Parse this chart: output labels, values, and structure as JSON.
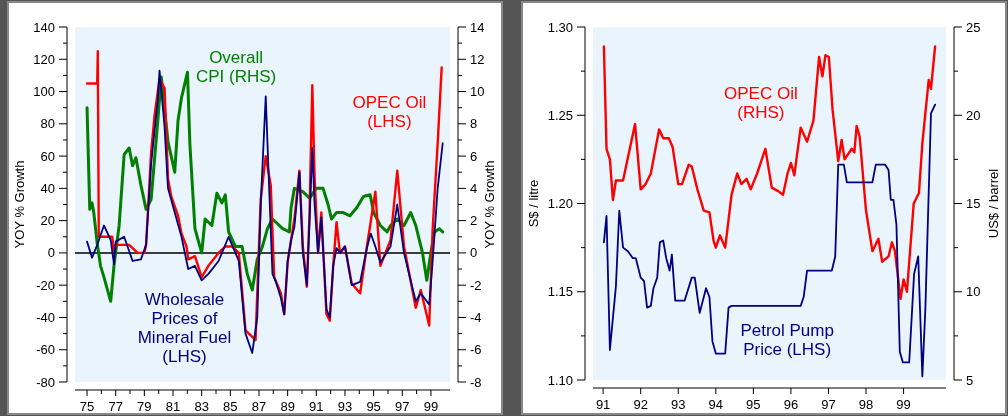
{
  "chart_data": [
    {
      "type": "line",
      "ylabel": "YOY % Growth",
      "y2label": "YOY % Growth",
      "xlim": [
        1974.16,
        2000.33
      ],
      "ylim": [
        -80,
        140
      ],
      "y2lim": [
        -8,
        14
      ],
      "xticks": [
        {
          "value": 1975,
          "label": "75"
        },
        {
          "value": 1976,
          "label": null
        },
        {
          "value": 1977,
          "label": "77"
        },
        {
          "value": 1978,
          "label": null
        },
        {
          "value": 1979,
          "label": "79"
        },
        {
          "value": 1980,
          "label": null
        },
        {
          "value": 1981,
          "label": "81"
        },
        {
          "value": 1982,
          "label": null
        },
        {
          "value": 1983,
          "label": "83"
        },
        {
          "value": 1984,
          "label": null
        },
        {
          "value": 1985,
          "label": "85"
        },
        {
          "value": 1986,
          "label": null
        },
        {
          "value": 1987,
          "label": "87"
        },
        {
          "value": 1988,
          "label": null
        },
        {
          "value": 1989,
          "label": "89"
        },
        {
          "value": 1990,
          "label": null
        },
        {
          "value": 1991,
          "label": "91"
        },
        {
          "value": 1992,
          "label": null
        },
        {
          "value": 1993,
          "label": "93"
        },
        {
          "value": 1994,
          "label": null
        },
        {
          "value": 1995,
          "label": "95"
        },
        {
          "value": 1996,
          "label": null
        },
        {
          "value": 1997,
          "label": "97"
        },
        {
          "value": 1998,
          "label": null
        },
        {
          "value": 1999,
          "label": "99"
        }
      ],
      "yticks": [
        -80,
        {
          "value": -70,
          "label": null
        },
        -60,
        {
          "value": -50,
          "label": null
        },
        -40,
        {
          "value": -30,
          "label": null
        },
        -20,
        {
          "value": -10,
          "label": null
        },
        0,
        {
          "value": 10,
          "label": null
        },
        20,
        {
          "value": 30,
          "label": null
        },
        40,
        {
          "value": 50,
          "label": null
        },
        60,
        {
          "value": 70,
          "label": null
        },
        80,
        {
          "value": 90,
          "label": null
        },
        100,
        {
          "value": 110,
          "label": null
        },
        120,
        {
          "value": 130,
          "label": null
        },
        140
      ],
      "y2ticks": [
        -8,
        {
          "value": -7,
          "label": null
        },
        -6,
        {
          "value": -5,
          "label": null
        },
        -4,
        {
          "value": -3,
          "label": null
        },
        -2,
        {
          "value": -1,
          "label": null
        },
        0,
        {
          "value": 1,
          "label": null
        },
        2,
        {
          "value": 3,
          "label": null
        },
        4,
        {
          "value": 5,
          "label": null
        },
        6,
        {
          "value": 7,
          "label": null
        },
        8,
        {
          "value": 9,
          "label": null
        },
        10,
        {
          "value": 11,
          "label": null
        },
        12,
        {
          "value": 13,
          "label": null
        },
        14
      ],
      "ref_lines": [
        {
          "axis": "y",
          "value": 0,
          "color": "#000000"
        }
      ],
      "grid": false,
      "line_style": "solid",
      "marker": "none",
      "series": [
        {
          "name": "Overall CPI (RHS)",
          "color": "#008000",
          "axis": "y2",
          "x": [
            1975.0,
            1975.19,
            1975.35,
            1975.47,
            1975.71,
            1975.94,
            1976.18,
            1976.65,
            1976.88,
            1977.24,
            1977.59,
            1977.94,
            1978.18,
            1978.41,
            1978.76,
            1979.12,
            1979.47,
            1979.94,
            1980.18,
            1980.65,
            1981.12,
            1981.35,
            1981.59,
            1982.01,
            1982.18,
            1982.53,
            1983.0,
            1983.24,
            1983.71,
            1984.06,
            1984.41,
            1984.65,
            1984.88,
            1985.35,
            1985.82,
            1986.18,
            1986.53,
            1986.88,
            1987.24,
            1987.59,
            1987.94,
            1988.65,
            1989.12,
            1989.24,
            1989.47,
            1990.06,
            1990.53,
            1991.0,
            1991.47,
            1991.82,
            1992.06,
            1992.41,
            1992.88,
            1993.35,
            1993.82,
            1994.29,
            1994.76,
            1995.0,
            1995.47,
            1995.94,
            1996.18,
            1996.65,
            1997.12,
            1997.59,
            1997.94,
            1998.41,
            1998.71,
            1998.99,
            1999.24,
            1999.59,
            1999.82
          ],
          "values": [
            9.0,
            2.7,
            3.1,
            2.5,
            0.6,
            -0.8,
            -1.5,
            -3.0,
            -0.8,
            1.7,
            6.1,
            6.5,
            5.4,
            5.9,
            4.2,
            2.7,
            3.3,
            8.2,
            10.9,
            6.9,
            5.0,
            8.2,
            9.6,
            11.2,
            6.7,
            1.5,
            0.0,
            2.1,
            1.7,
            3.7,
            3.1,
            3.6,
            1.3,
            0.4,
            0.4,
            -1.3,
            -2.3,
            -0.4,
            0.4,
            1.5,
            2.1,
            1.5,
            1.3,
            2.8,
            4.0,
            3.8,
            3.4,
            4.0,
            4.0,
            3.0,
            2.1,
            2.5,
            2.5,
            2.3,
            2.8,
            3.5,
            3.6,
            2.5,
            1.7,
            1.3,
            1.7,
            2.1,
            1.7,
            2.5,
            1.7,
            0.0,
            -1.7,
            0.0,
            1.3,
            1.5,
            1.3
          ]
        },
        {
          "name": "OPEC Oil (LHS)",
          "color": "#ff0000",
          "x": [
            1975.0,
            1975.71,
            1975.75,
            1975.82,
            1976.76,
            1976.88,
            1977.0,
            1977.94,
            1978.53,
            1979.0,
            1979.12,
            1979.47,
            1979.71,
            1980.06,
            1980.41,
            1980.65,
            1980.88,
            1981.35,
            1981.59,
            1981.94,
            1982.06,
            1982.53,
            1983.0,
            1983.47,
            1984.18,
            1984.65,
            1985.12,
            1985.59,
            1986.06,
            1986.76,
            1987.12,
            1987.47,
            1987.82,
            1988.06,
            1988.53,
            1988.76,
            1989.0,
            1989.24,
            1989.47,
            1989.82,
            1990.06,
            1990.34,
            1990.53,
            1990.72,
            1990.88,
            1991.12,
            1991.35,
            1991.71,
            1991.94,
            1992.18,
            1992.41,
            1992.65,
            1993.0,
            1993.47,
            1994.06,
            1994.53,
            1995.12,
            1995.47,
            1996.18,
            1996.65,
            1997.12,
            1997.94,
            1998.29,
            1998.88,
            1999.12,
            1999.47,
            1999.75
          ],
          "values": [
            105,
            105,
            125,
            10,
            10,
            0,
            5,
            5,
            0,
            0,
            5,
            62,
            85,
            108,
            102,
            46,
            35,
            23,
            12,
            4,
            -4,
            -2,
            -15,
            -8,
            0,
            4,
            4,
            0,
            -48,
            -54,
            33,
            60,
            42,
            -15,
            -25,
            -38,
            -6,
            8,
            21,
            51,
            4,
            -21,
            25,
            104,
            47,
            0,
            25,
            -38,
            -42,
            -8,
            19,
            0,
            4,
            -19,
            -25,
            4,
            38,
            -8,
            8,
            51,
            4,
            -34,
            -23,
            -45,
            15,
            68,
            115
          ]
        },
        {
          "name": "Wholesale Prices of Mineral Fuel (LHS)",
          "color": "#000080",
          "x": [
            1975.0,
            1975.35,
            1975.71,
            1976.18,
            1976.65,
            1976.88,
            1977.0,
            1977.59,
            1978.18,
            1978.76,
            1979.12,
            1979.47,
            1979.94,
            1980.06,
            1980.41,
            1980.65,
            1981.12,
            1981.59,
            1982.06,
            1982.53,
            1983.0,
            1983.47,
            1984.18,
            1984.88,
            1985.12,
            1985.59,
            1986.06,
            1986.53,
            1986.88,
            1987.12,
            1987.47,
            1987.71,
            1987.94,
            1988.18,
            1988.53,
            1988.76,
            1989.0,
            1989.24,
            1989.47,
            1989.82,
            1990.06,
            1990.34,
            1990.53,
            1990.72,
            1990.88,
            1991.12,
            1991.35,
            1991.71,
            1991.94,
            1992.18,
            1992.41,
            1992.65,
            1993.0,
            1993.47,
            1994.06,
            1994.53,
            1994.8,
            1995.12,
            1995.47,
            1996.18,
            1996.65,
            1997.12,
            1997.94,
            1998.29,
            1998.88,
            1999.12,
            1999.47,
            1999.82
          ],
          "values": [
            7,
            -3,
            5,
            17,
            8,
            -7,
            7,
            10,
            -5,
            -4,
            5,
            55,
            95,
            113,
            78,
            40,
            25,
            10,
            -10,
            -8,
            -17,
            -13,
            -5,
            10,
            5,
            -5,
            -50,
            -62,
            -40,
            30,
            97,
            40,
            -13,
            -18,
            -28,
            -38,
            -5,
            8,
            16,
            50,
            0,
            -20,
            20,
            65,
            30,
            0,
            22,
            -35,
            -40,
            -8,
            3,
            0,
            4,
            -20,
            -18,
            3,
            12,
            4,
            -6,
            4,
            30,
            0,
            -30,
            -25,
            -32,
            -5,
            40,
            68
          ]
        }
      ]
    },
    {
      "type": "line",
      "ylabel": "S$ / litre",
      "y2label": "US$ / barrel",
      "xlim": [
        1990.73,
        2000.13
      ],
      "ylim": [
        1.1,
        1.3
      ],
      "y2lim": [
        5,
        25
      ],
      "xticks": [
        {
          "value": 1991,
          "label": "91"
        },
        {
          "value": 1992,
          "label": "92"
        },
        {
          "value": 1993,
          "label": "93"
        },
        {
          "value": 1994,
          "label": "94"
        },
        {
          "value": 1995,
          "label": "95"
        },
        {
          "value": 1996,
          "label": "96"
        },
        {
          "value": 1997,
          "label": "97"
        },
        {
          "value": 1998,
          "label": "98"
        },
        {
          "value": 1999,
          "label": "99"
        }
      ],
      "yticks": [
        {
          "value": 1.1,
          "label": "1.10"
        },
        {
          "value": 1.125,
          "label": null
        },
        {
          "value": 1.15,
          "label": "1.15"
        },
        {
          "value": 1.175,
          "label": null
        },
        {
          "value": 1.2,
          "label": "1.20"
        },
        {
          "value": 1.225,
          "label": null
        },
        {
          "value": 1.25,
          "label": "1.25"
        },
        {
          "value": 1.275,
          "label": null
        },
        {
          "value": 1.3,
          "label": "1.30"
        }
      ],
      "y2ticks": [
        5,
        {
          "value": 7.5,
          "label": null
        },
        10,
        {
          "value": 12.5,
          "label": null
        },
        15,
        {
          "value": 17.5,
          "label": null
        },
        20,
        {
          "value": 22.5,
          "label": null
        },
        25
      ],
      "grid": false,
      "line_style": "solid",
      "marker": "none",
      "series": [
        {
          "name": "OPEC Oil (RHS)",
          "color": "#ff0000",
          "axis": "y2",
          "x": [
            1991.02,
            1991.09,
            1991.18,
            1991.26,
            1991.34,
            1991.53,
            1991.66,
            1991.85,
            1992.0,
            1992.13,
            1992.27,
            1992.49,
            1992.6,
            1992.75,
            1992.85,
            1993.0,
            1993.1,
            1993.28,
            1993.36,
            1993.51,
            1993.68,
            1993.83,
            1993.94,
            1994.0,
            1994.11,
            1994.25,
            1994.42,
            1994.57,
            1994.68,
            1994.82,
            1994.93,
            1995.1,
            1995.21,
            1995.32,
            1995.49,
            1995.66,
            1995.79,
            1995.91,
            1996.0,
            1996.09,
            1996.26,
            1996.43,
            1996.6,
            1996.75,
            1996.84,
            1996.92,
            1997.01,
            1997.11,
            1997.26,
            1997.35,
            1997.43,
            1997.62,
            1997.69,
            1997.75,
            1997.83,
            1998.0,
            1998.17,
            1998.33,
            1998.43,
            1998.6,
            1998.69,
            1998.77,
            1998.92,
            1999.0,
            1999.09,
            1999.27,
            1999.41,
            1999.5,
            1999.67,
            1999.73,
            1999.84
          ],
          "values": [
            23.9,
            18.1,
            17.5,
            15.2,
            16.3,
            16.3,
            17.6,
            19.5,
            15.8,
            16.1,
            16.7,
            19.2,
            18.7,
            18.7,
            18.2,
            16.1,
            16.1,
            17.2,
            17.1,
            15.8,
            14.6,
            14.5,
            12.9,
            12.5,
            13.2,
            12.5,
            15.5,
            16.7,
            16.1,
            16.4,
            15.8,
            16.7,
            17.4,
            18.1,
            15.9,
            15.7,
            15.5,
            16.7,
            17.3,
            16.6,
            19.3,
            18.5,
            19.7,
            23.3,
            22.2,
            23.4,
            23.3,
            20.3,
            17.4,
            18.6,
            17.5,
            18.1,
            17.9,
            19.4,
            18.8,
            14.6,
            12.3,
            13.0,
            11.7,
            12.0,
            12.8,
            12.3,
            9.6,
            10.7,
            10.0,
            15.0,
            15.6,
            18.4,
            22.0,
            21.5,
            23.9
          ]
        },
        {
          "name": "Petrol Pump Price (LHS)",
          "color": "#000080",
          "x": [
            1991.02,
            1991.09,
            1991.18,
            1991.34,
            1991.43,
            1991.53,
            1991.66,
            1991.79,
            1991.87,
            1992.0,
            1992.09,
            1992.17,
            1992.27,
            1992.34,
            1992.44,
            1992.51,
            1992.6,
            1992.68,
            1992.77,
            1992.83,
            1992.92,
            1993.02,
            1993.17,
            1993.36,
            1993.44,
            1993.57,
            1993.74,
            1993.83,
            1993.91,
            1994.0,
            1994.25,
            1994.34,
            1994.42,
            1996.26,
            1996.34,
            1996.43,
            1997.09,
            1997.18,
            1997.26,
            1997.41,
            1997.49,
            1998.17,
            1998.26,
            1998.51,
            1998.6,
            1998.66,
            1998.73,
            1998.81,
            1998.9,
            1998.98,
            1999.15,
            1999.28,
            1999.39,
            1999.5,
            1999.58,
            1999.73,
            1999.84
          ],
          "values": [
            1.178,
            1.193,
            1.117,
            1.153,
            1.196,
            1.175,
            1.173,
            1.169,
            1.169,
            1.158,
            1.156,
            1.141,
            1.142,
            1.152,
            1.158,
            1.178,
            1.179,
            1.169,
            1.162,
            1.171,
            1.145,
            1.145,
            1.145,
            1.158,
            1.158,
            1.138,
            1.152,
            1.147,
            1.122,
            1.115,
            1.115,
            1.141,
            1.142,
            1.142,
            1.147,
            1.162,
            1.162,
            1.17,
            1.222,
            1.222,
            1.212,
            1.212,
            1.222,
            1.222,
            1.219,
            1.202,
            1.202,
            1.188,
            1.116,
            1.11,
            1.11,
            1.16,
            1.17,
            1.102,
            1.14,
            1.251,
            1.256
          ]
        }
      ]
    }
  ]
}
